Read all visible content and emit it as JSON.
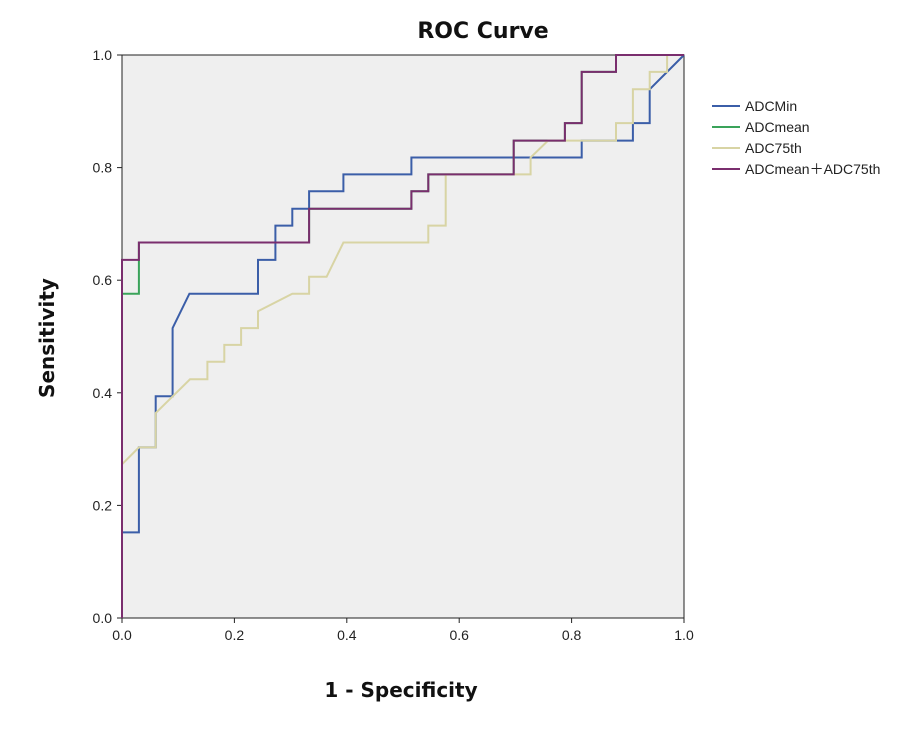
{
  "chart_data": {
    "type": "line",
    "title": "ROC Curve",
    "xlabel": "1 - Specificity",
    "ylabel": "Sensitivity",
    "xlim": [
      0,
      1
    ],
    "ylim": [
      0,
      1
    ],
    "xticks": [
      "0.0",
      "0.2",
      "0.4",
      "0.6",
      "0.8",
      "1.0"
    ],
    "yticks": [
      "0.0",
      "0.2",
      "0.4",
      "0.6",
      "0.8",
      "1.0"
    ],
    "grid": false,
    "plot_background": "#efefef",
    "legend_position": "right",
    "series": [
      {
        "name": "ADCMin",
        "color": "#3b5ea8",
        "points": [
          [
            0,
            0
          ],
          [
            0,
            0.152
          ],
          [
            0.03,
            0.152
          ],
          [
            0.03,
            0.303
          ],
          [
            0.06,
            0.303
          ],
          [
            0.06,
            0.394
          ],
          [
            0.09,
            0.394
          ],
          [
            0.09,
            0.515
          ],
          [
            0.12,
            0.576
          ],
          [
            0.242,
            0.576
          ],
          [
            0.242,
            0.636
          ],
          [
            0.273,
            0.636
          ],
          [
            0.273,
            0.697
          ],
          [
            0.303,
            0.697
          ],
          [
            0.303,
            0.727
          ],
          [
            0.333,
            0.727
          ],
          [
            0.333,
            0.758
          ],
          [
            0.394,
            0.758
          ],
          [
            0.394,
            0.788
          ],
          [
            0.515,
            0.788
          ],
          [
            0.515,
            0.818
          ],
          [
            0.818,
            0.818
          ],
          [
            0.818,
            0.848
          ],
          [
            0.909,
            0.848
          ],
          [
            0.909,
            0.879
          ],
          [
            0.939,
            0.879
          ],
          [
            0.939,
            0.939
          ],
          [
            1,
            1
          ]
        ]
      },
      {
        "name": "ADCmean",
        "color": "#3aa35a",
        "points": [
          [
            0,
            0
          ],
          [
            0,
            0.576
          ],
          [
            0.03,
            0.576
          ],
          [
            0.03,
            0.667
          ],
          [
            0.333,
            0.667
          ],
          [
            0.333,
            0.727
          ],
          [
            0.515,
            0.727
          ],
          [
            0.515,
            0.758
          ],
          [
            0.545,
            0.758
          ],
          [
            0.545,
            0.788
          ],
          [
            0.697,
            0.788
          ],
          [
            0.697,
            0.848
          ],
          [
            0.788,
            0.848
          ],
          [
            0.788,
            0.879
          ],
          [
            0.818,
            0.879
          ],
          [
            0.818,
            0.97
          ],
          [
            0.879,
            0.97
          ],
          [
            0.879,
            1
          ],
          [
            1,
            1
          ]
        ]
      },
      {
        "name": "ADC75th",
        "color": "#d8d4a4",
        "points": [
          [
            0,
            0.273
          ],
          [
            0.03,
            0.303
          ],
          [
            0.06,
            0.303
          ],
          [
            0.06,
            0.364
          ],
          [
            0.121,
            0.424
          ],
          [
            0.152,
            0.424
          ],
          [
            0.152,
            0.455
          ],
          [
            0.182,
            0.455
          ],
          [
            0.182,
            0.485
          ],
          [
            0.212,
            0.485
          ],
          [
            0.212,
            0.515
          ],
          [
            0.242,
            0.515
          ],
          [
            0.242,
            0.545
          ],
          [
            0.303,
            0.576
          ],
          [
            0.333,
            0.576
          ],
          [
            0.333,
            0.606
          ],
          [
            0.364,
            0.606
          ],
          [
            0.394,
            0.667
          ],
          [
            0.545,
            0.667
          ],
          [
            0.545,
            0.697
          ],
          [
            0.576,
            0.697
          ],
          [
            0.576,
            0.788
          ],
          [
            0.727,
            0.788
          ],
          [
            0.727,
            0.818
          ],
          [
            0.758,
            0.848
          ],
          [
            0.879,
            0.848
          ],
          [
            0.879,
            0.879
          ],
          [
            0.909,
            0.879
          ],
          [
            0.909,
            0.939
          ],
          [
            0.939,
            0.939
          ],
          [
            0.939,
            0.97
          ],
          [
            0.97,
            0.97
          ],
          [
            0.97,
            1
          ],
          [
            1,
            1
          ]
        ]
      },
      {
        "name": "ADCmean＋ADC75th",
        "color": "#7a2e6e",
        "points": [
          [
            0,
            0
          ],
          [
            0,
            0.636
          ],
          [
            0.03,
            0.636
          ],
          [
            0.03,
            0.667
          ],
          [
            0.333,
            0.667
          ],
          [
            0.333,
            0.727
          ],
          [
            0.515,
            0.727
          ],
          [
            0.515,
            0.758
          ],
          [
            0.545,
            0.758
          ],
          [
            0.545,
            0.788
          ],
          [
            0.697,
            0.788
          ],
          [
            0.697,
            0.848
          ],
          [
            0.788,
            0.848
          ],
          [
            0.788,
            0.879
          ],
          [
            0.818,
            0.879
          ],
          [
            0.818,
            0.97
          ],
          [
            0.879,
            0.97
          ],
          [
            0.879,
            1
          ],
          [
            1,
            1
          ]
        ]
      }
    ]
  }
}
